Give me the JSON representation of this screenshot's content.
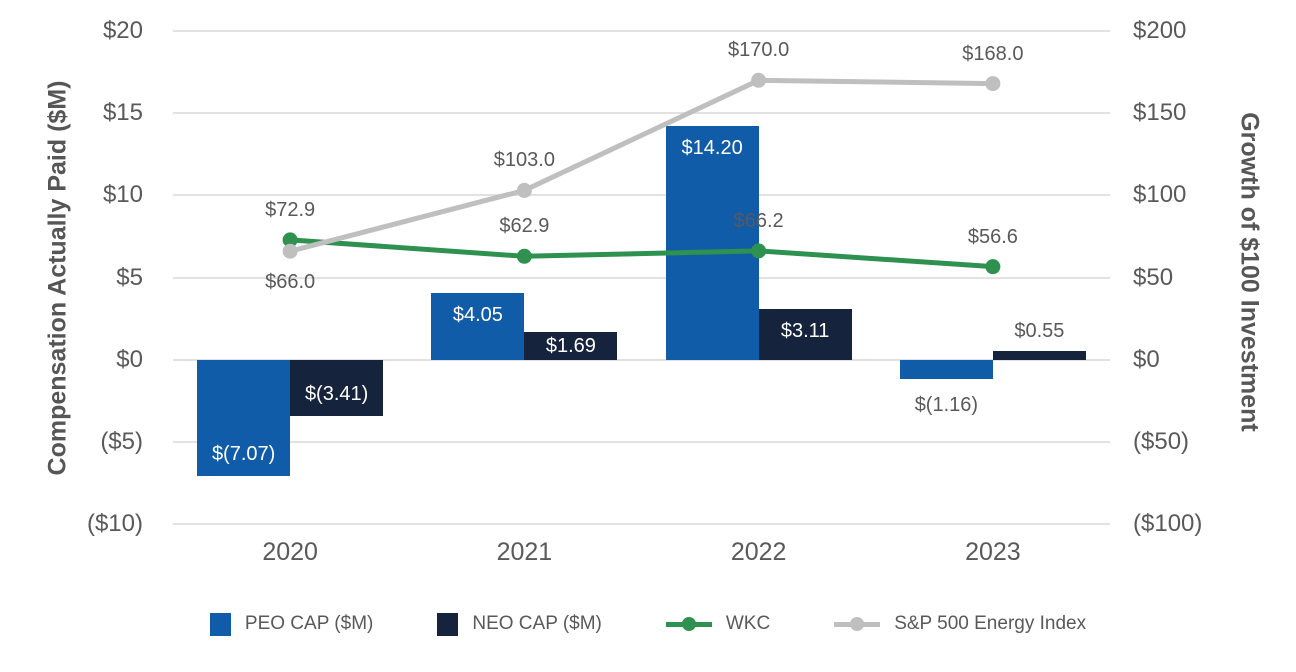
{
  "chart_data": {
    "type": "combo-bar-line",
    "title": "",
    "categories": [
      "2020",
      "2021",
      "2022",
      "2023"
    ],
    "series": [
      {
        "name": "PEO CAP ($M)",
        "type": "bar",
        "axis": "left",
        "color": "#115ca8",
        "values": [
          -7.07,
          4.05,
          14.2,
          -1.16
        ],
        "labels": [
          "$(7.07)",
          "$4.05",
          "$14.20",
          "$(1.16)"
        ]
      },
      {
        "name": "NEO CAP ($M)",
        "type": "bar",
        "axis": "left",
        "color": "#15233c",
        "values": [
          -3.41,
          1.69,
          3.11,
          0.55
        ],
        "labels": [
          "$(3.41)",
          "$1.69",
          "$3.11",
          "$0.55"
        ]
      },
      {
        "name": "WKC",
        "type": "line",
        "axis": "right",
        "color": "#2e9150",
        "values": [
          72.9,
          62.9,
          66.2,
          56.6
        ],
        "labels": [
          "$72.9",
          "$62.9",
          "$66.2",
          "$56.6"
        ],
        "label_positions": [
          "above",
          "above",
          "above",
          "above"
        ]
      },
      {
        "name": "S&P 500 Energy Index",
        "type": "line",
        "axis": "right",
        "color": "#bfbfbf",
        "values": [
          66.0,
          103.0,
          170.0,
          168.0
        ],
        "labels": [
          "$66.0",
          "$103.0",
          "$170.0",
          "$168.0"
        ],
        "label_positions": [
          "below",
          "above",
          "above",
          "above"
        ]
      }
    ],
    "left_axis": {
      "title": "Compensation Actually Paid ($M)",
      "min": -10,
      "max": 20,
      "step": 5,
      "tick_labels": [
        "$20",
        "$15",
        "$10",
        "$5",
        "$0",
        "($5)",
        "($10)"
      ]
    },
    "right_axis": {
      "title": "Growth of $100 Investment",
      "min": -100,
      "max": 200,
      "step": 50,
      "tick_labels": [
        "$200",
        "$150",
        "$100",
        "$50",
        "$0",
        "($50)",
        "($100)"
      ]
    },
    "grid": true,
    "legend_position": "bottom",
    "colors": {
      "grid": "#e2e2e2",
      "tick_text": "#595959",
      "label_text": "#595959",
      "bar_inside_text": "#ffffff",
      "background": "#ffffff"
    }
  }
}
